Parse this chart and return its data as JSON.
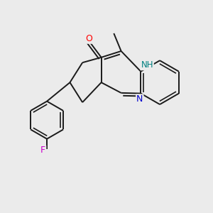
{
  "background_color": "#ebebeb",
  "bond_color": "#1a1a1a",
  "atom_colors": {
    "O": "#ff0000",
    "N_blue": "#0000cc",
    "N_teal": "#008080",
    "F": "#cc00cc",
    "C": "#1a1a1a"
  },
  "figsize": [
    3.0,
    3.0
  ],
  "dpi": 100,
  "xlim": [
    0,
    10
  ],
  "ylim": [
    0,
    10
  ]
}
